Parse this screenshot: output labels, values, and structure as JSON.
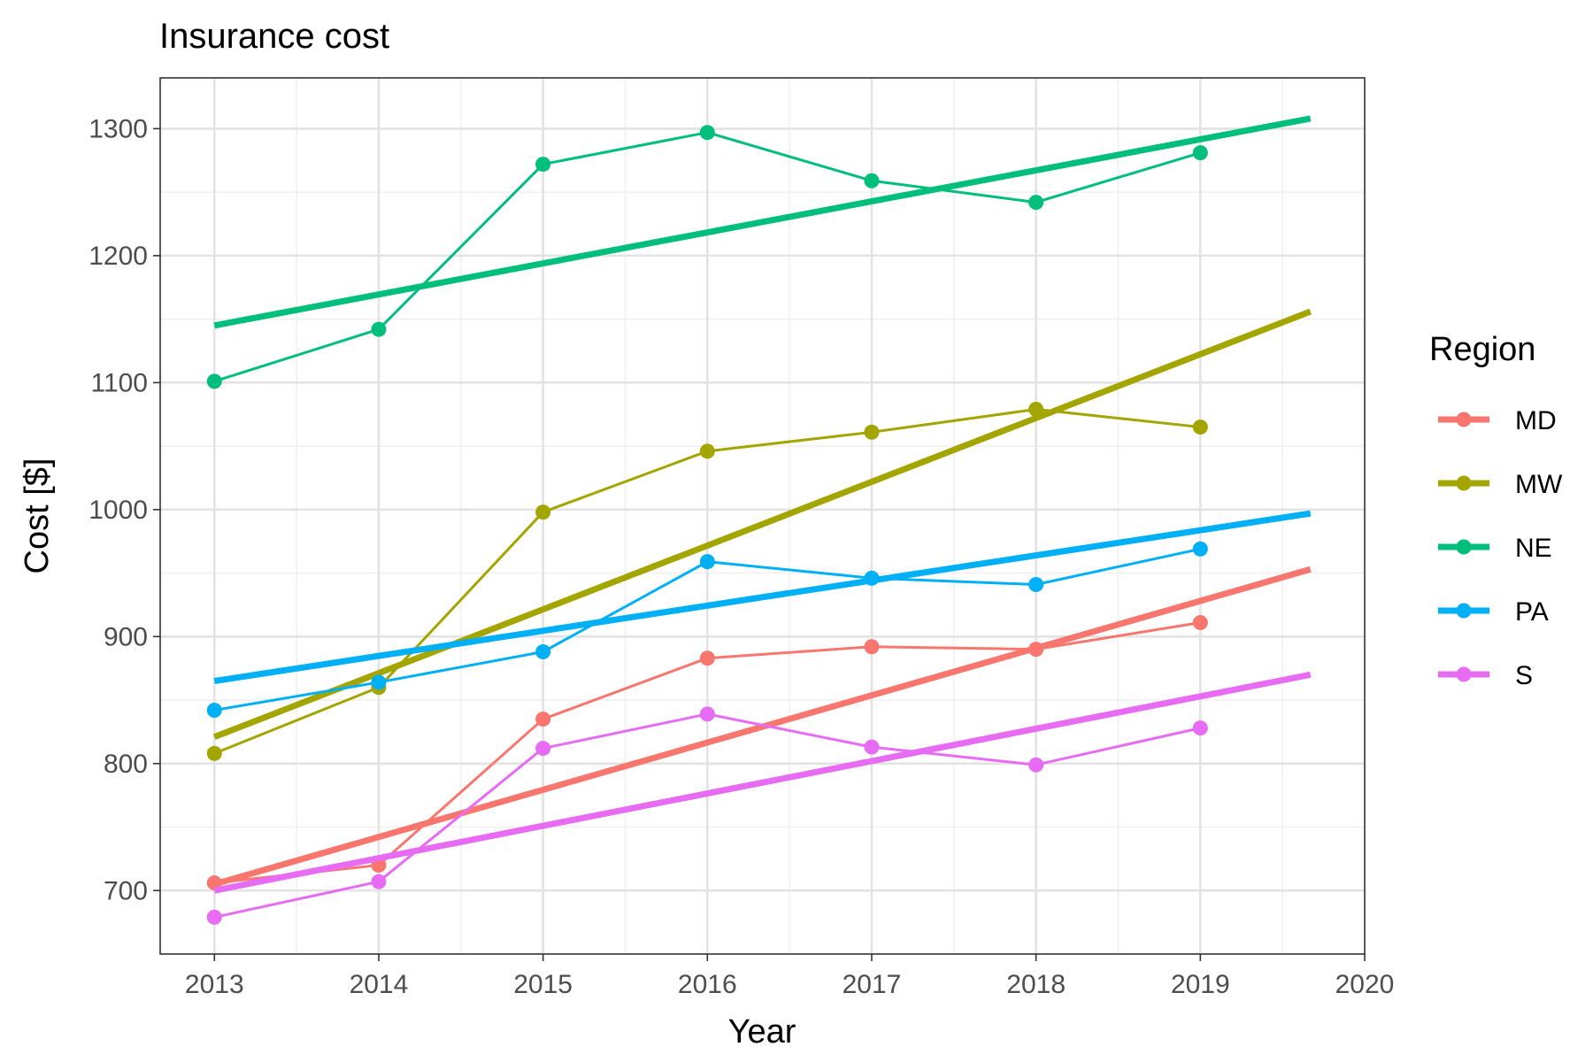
{
  "chart_data": {
    "type": "line",
    "title": "Insurance cost",
    "xlabel": "Year",
    "ylabel": "Cost [$]",
    "xlim": [
      2012.67,
      2020
    ],
    "ylim": [
      650,
      1340
    ],
    "xticks": [
      2013,
      2014,
      2015,
      2016,
      2017,
      2018,
      2019,
      2020
    ],
    "yticks": [
      700,
      800,
      900,
      1000,
      1100,
      1200,
      1300
    ],
    "grid": true,
    "legend": {
      "title": "Region",
      "placement": "right"
    },
    "x": [
      2013,
      2014,
      2015,
      2016,
      2017,
      2018,
      2019
    ],
    "series": [
      {
        "name": "MD",
        "color": "#F8766D",
        "values": [
          706,
          720,
          835,
          883,
          892,
          890,
          911
        ],
        "trend": {
          "x": [
            2013,
            2019.67
          ],
          "y": [
            705,
            953
          ]
        }
      },
      {
        "name": "MW",
        "color": "#A3A500",
        "values": [
          808,
          860,
          998,
          1046,
          1061,
          1079,
          1065
        ],
        "trend": {
          "x": [
            2013,
            2019.67
          ],
          "y": [
            821,
            1156
          ]
        }
      },
      {
        "name": "NE",
        "color": "#00BF7D",
        "values": [
          1101,
          1142,
          1272,
          1297,
          1259,
          1242,
          1281
        ],
        "trend": {
          "x": [
            2013,
            2019.67
          ],
          "y": [
            1145,
            1308
          ]
        }
      },
      {
        "name": "PA",
        "color": "#00B0F6",
        "values": [
          842,
          864,
          888,
          959,
          946,
          941,
          969
        ],
        "trend": {
          "x": [
            2013,
            2019.67
          ],
          "y": [
            865,
            997
          ]
        }
      },
      {
        "name": "S",
        "color": "#E76BF3",
        "values": [
          679,
          707,
          812,
          839,
          813,
          799,
          828
        ],
        "trend": {
          "x": [
            2013,
            2019.67
          ],
          "y": [
            700,
            870
          ]
        }
      }
    ]
  }
}
